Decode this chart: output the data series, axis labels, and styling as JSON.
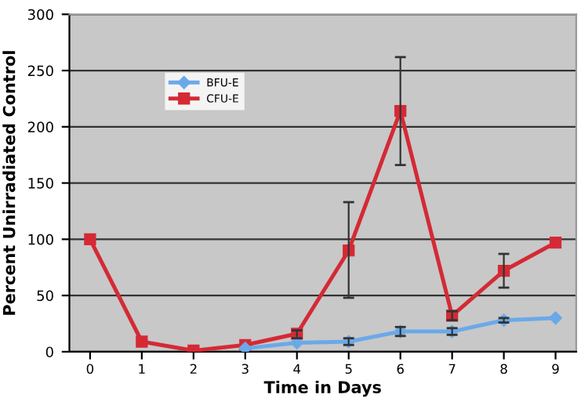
{
  "chart_data": {
    "type": "line",
    "xlabel": "Time in Days",
    "ylabel": "Percent Unirradiated Control",
    "categories": [
      "0",
      "1",
      "2",
      "3",
      "4",
      "5",
      "6",
      "7",
      "8",
      "9"
    ],
    "series": [
      {
        "name": "BFU-E",
        "color": "#6aa9e9",
        "marker": "diamond",
        "values": [
          null,
          null,
          null,
          3,
          8,
          9,
          18,
          18,
          28,
          30
        ],
        "errors": [
          null,
          null,
          null,
          null,
          null,
          [
            6,
            12
          ],
          [
            14,
            22
          ],
          [
            15,
            21
          ],
          [
            26,
            30
          ],
          null
        ]
      },
      {
        "name": "CFU-E",
        "color": "#d42a35",
        "marker": "square",
        "values": [
          100,
          9,
          1,
          6,
          16,
          90,
          214,
          32,
          72,
          97
        ],
        "errors": [
          null,
          null,
          null,
          null,
          [
            12,
            19
          ],
          [
            48,
            133
          ],
          [
            166,
            262
          ],
          [
            28,
            36
          ],
          [
            57,
            87
          ],
          null
        ]
      }
    ],
    "ylim": [
      0,
      300
    ],
    "yticks": [
      0,
      50,
      100,
      150,
      200,
      250,
      300
    ],
    "grid": "y",
    "legend": "top left"
  }
}
